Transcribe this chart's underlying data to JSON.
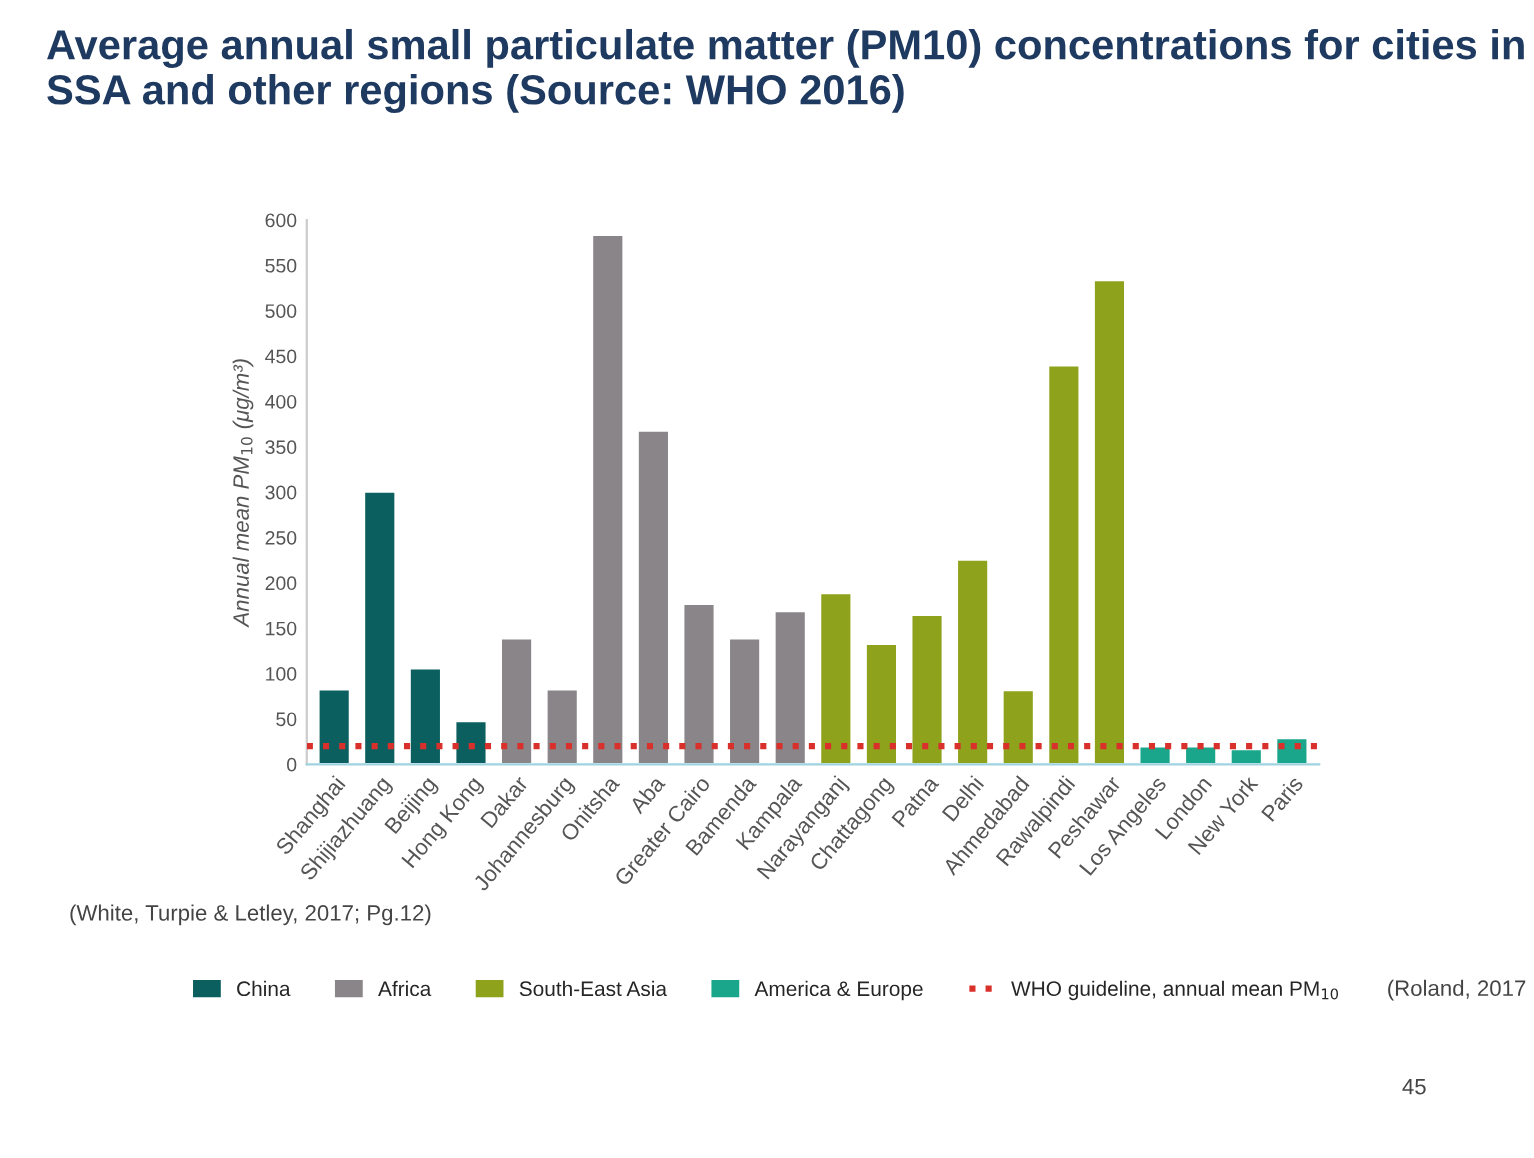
{
  "chart_data": {
    "type": "bar",
    "title": "Average annual small particulate matter (PM10) concentrations for cities in SSA and other regions (Source: WHO 2016)",
    "ylabel": "Annual mean PM$_{10}$ (μg/m³)",
    "categories": [
      "Shanghai",
      "Shijiazhuang",
      "Beijing",
      "Hong Kong",
      "Dakar",
      "Johannesburg",
      "Onitsha",
      "Aba",
      "Greater Cairo",
      "Bamenda",
      "Kampala",
      "Narayanganj",
      "Chattagong",
      "Patna",
      "Delhi",
      "Ahmedabad",
      "Rawalpindi",
      "Peshawar",
      "Los Angeles",
      "London",
      "New York",
      "Paris"
    ],
    "series": [
      {
        "name": "China",
        "color": "#0b5f5f",
        "values": [
          83,
          301,
          106,
          48,
          null,
          null,
          null,
          null,
          null,
          null,
          null,
          null,
          null,
          null,
          null,
          null,
          null,
          null,
          null,
          null,
          null,
          null
        ]
      },
      {
        "name": "Africa",
        "color": "#8a8588",
        "values": [
          null,
          null,
          null,
          null,
          139,
          83,
          584,
          368,
          177,
          139,
          169,
          null,
          null,
          null,
          null,
          null,
          null,
          null,
          null,
          null,
          null,
          null
        ]
      },
      {
        "name": "South-East Asia",
        "color": "#8fa21c",
        "values": [
          null,
          null,
          null,
          null,
          null,
          null,
          null,
          null,
          null,
          null,
          null,
          189,
          133,
          165,
          226,
          82,
          440,
          534,
          null,
          null,
          null,
          null
        ]
      },
      {
        "name": "America & Europe",
        "color": "#1aa68a",
        "values": [
          null,
          null,
          null,
          null,
          null,
          null,
          null,
          null,
          null,
          null,
          null,
          null,
          null,
          null,
          null,
          null,
          null,
          null,
          20,
          20,
          17,
          29
        ]
      }
    ],
    "ylim": [
      0,
      600
    ],
    "yticks": [
      0,
      50,
      100,
      150,
      200,
      250,
      300,
      350,
      400,
      450,
      500,
      550,
      600
    ],
    "ref_lines": [
      {
        "axis": "y",
        "value": 20,
        "label": "WHO guideline, annual mean PM$_{10}$",
        "color": "#d9302c",
        "line_style": "dotted"
      }
    ],
    "annotations": [
      "(White, Turpie & Letley, 2017; Pg.12)",
      "(Roland, 2017",
      "45"
    ],
    "grid": false,
    "legend": "bottom"
  }
}
